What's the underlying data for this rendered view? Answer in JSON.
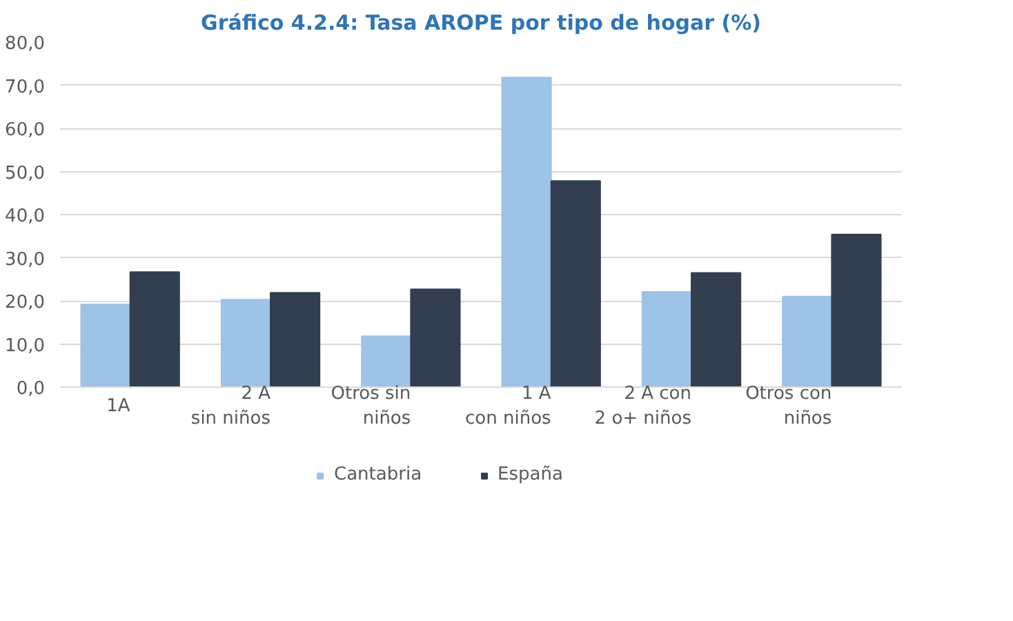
{
  "chart_data": {
    "type": "bar",
    "title": "Gráfico 4.2.4: Tasa AROPE por tipo de hogar (%)",
    "categories": [
      "1A",
      "2 A sin niños",
      "Otros sin niños",
      "1 A con niños",
      "2 A con 2 o+ niños",
      "Otros con niños"
    ],
    "series": [
      {
        "name": "Cantabria",
        "color": "#9dc3e6",
        "values": [
          19.2,
          20.3,
          11.8,
          71.8,
          22.1,
          21.0
        ]
      },
      {
        "name": "España",
        "color": "#333f50",
        "values": [
          26.7,
          21.9,
          22.7,
          47.8,
          26.5,
          35.4
        ]
      }
    ],
    "ylim": [
      0,
      80
    ],
    "yticks": [
      {
        "value": 0,
        "label": "0,0"
      },
      {
        "value": 10,
        "label": "10,0"
      },
      {
        "value": 20,
        "label": "20,0"
      },
      {
        "value": 30,
        "label": "30,0"
      },
      {
        "value": 40,
        "label": "40,0"
      },
      {
        "value": 50,
        "label": "50,0"
      },
      {
        "value": 60,
        "label": "60,0"
      },
      {
        "value": 70,
        "label": "70,0"
      },
      {
        "value": 80,
        "label": "80,0"
      }
    ],
    "grid": "y",
    "legend": "bottom"
  }
}
